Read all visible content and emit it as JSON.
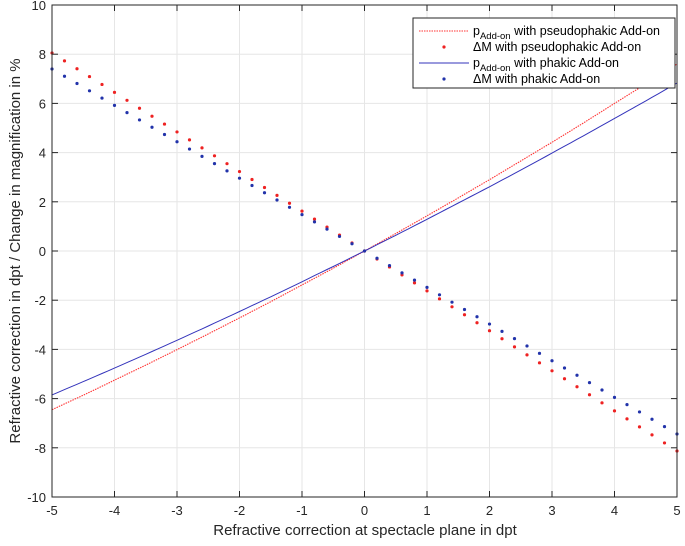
{
  "chart_data": {
    "type": "line",
    "title": "",
    "xlabel": "Refractive correction at spectacle plane in dpt",
    "ylabel": "Refractive correction in dpt / Change in magnification in %",
    "xlim": [
      -5,
      5
    ],
    "ylim": [
      -10,
      10
    ],
    "xticks": [
      -5,
      -4,
      -3,
      -2,
      -1,
      0,
      1,
      2,
      3,
      4,
      5
    ],
    "yticks": [
      -10,
      -8,
      -6,
      -4,
      -2,
      0,
      2,
      4,
      6,
      8,
      10
    ],
    "grid": true,
    "legend_position": "upper right",
    "x": [
      -5,
      -4.5,
      -4,
      -3.5,
      -3,
      -2.5,
      -2,
      -1.5,
      -1,
      -0.5,
      0,
      0.5,
      1,
      1.5,
      2,
      2.5,
      3,
      3.5,
      4,
      4.5,
      5
    ],
    "series": [
      {
        "name": "p_Add-on with pseudophakic Add-on",
        "style": "dotted-line",
        "color": "#ff3333",
        "values": [
          -6.45,
          -5.86,
          -5.25,
          -4.64,
          -4.01,
          -3.37,
          -2.72,
          -2.06,
          -1.38,
          -0.7,
          0,
          0.71,
          1.43,
          2.16,
          2.9,
          3.66,
          4.42,
          5.2,
          6.0,
          6.79,
          7.6
        ]
      },
      {
        "name": "ΔM with pseudophakic Add-on",
        "style": "dots",
        "color": "#ee2222",
        "values": [
          8.05,
          7.25,
          6.45,
          5.64,
          4.84,
          4.03,
          3.23,
          2.42,
          1.62,
          0.81,
          0,
          -0.81,
          -1.62,
          -2.43,
          -3.24,
          -4.06,
          -4.87,
          -5.68,
          -6.5,
          -7.31,
          -8.13
        ]
      },
      {
        "name": "p_Add-on with phakic Add-on",
        "style": "solid-line",
        "color": "#3333bb",
        "values": [
          -5.85,
          -5.31,
          -4.76,
          -4.2,
          -3.63,
          -3.05,
          -2.46,
          -1.86,
          -1.25,
          -0.63,
          0,
          0.64,
          1.29,
          1.95,
          2.61,
          3.29,
          3.98,
          4.68,
          5.39,
          6.1,
          6.83
        ]
      },
      {
        "name": "ΔM with phakic Add-on",
        "style": "dots",
        "color": "#2233aa",
        "values": [
          7.4,
          6.66,
          5.92,
          5.18,
          4.44,
          3.7,
          2.96,
          2.22,
          1.48,
          0.74,
          0,
          -0.74,
          -1.48,
          -2.23,
          -2.97,
          -3.71,
          -4.46,
          -5.2,
          -5.95,
          -6.69,
          -7.44
        ]
      }
    ]
  },
  "legend": {
    "items": [
      {
        "sym": "p",
        "sub": "Add-on",
        "text": " with pseudophakic Add-on"
      },
      {
        "sym": "ΔM",
        "sub": "",
        "text": " with pseudophakic Add-on"
      },
      {
        "sym": "p",
        "sub": "Add-on",
        "text": " with phakic Add-on"
      },
      {
        "sym": "ΔM",
        "sub": "",
        "text": " with phakic Add-on"
      }
    ]
  }
}
